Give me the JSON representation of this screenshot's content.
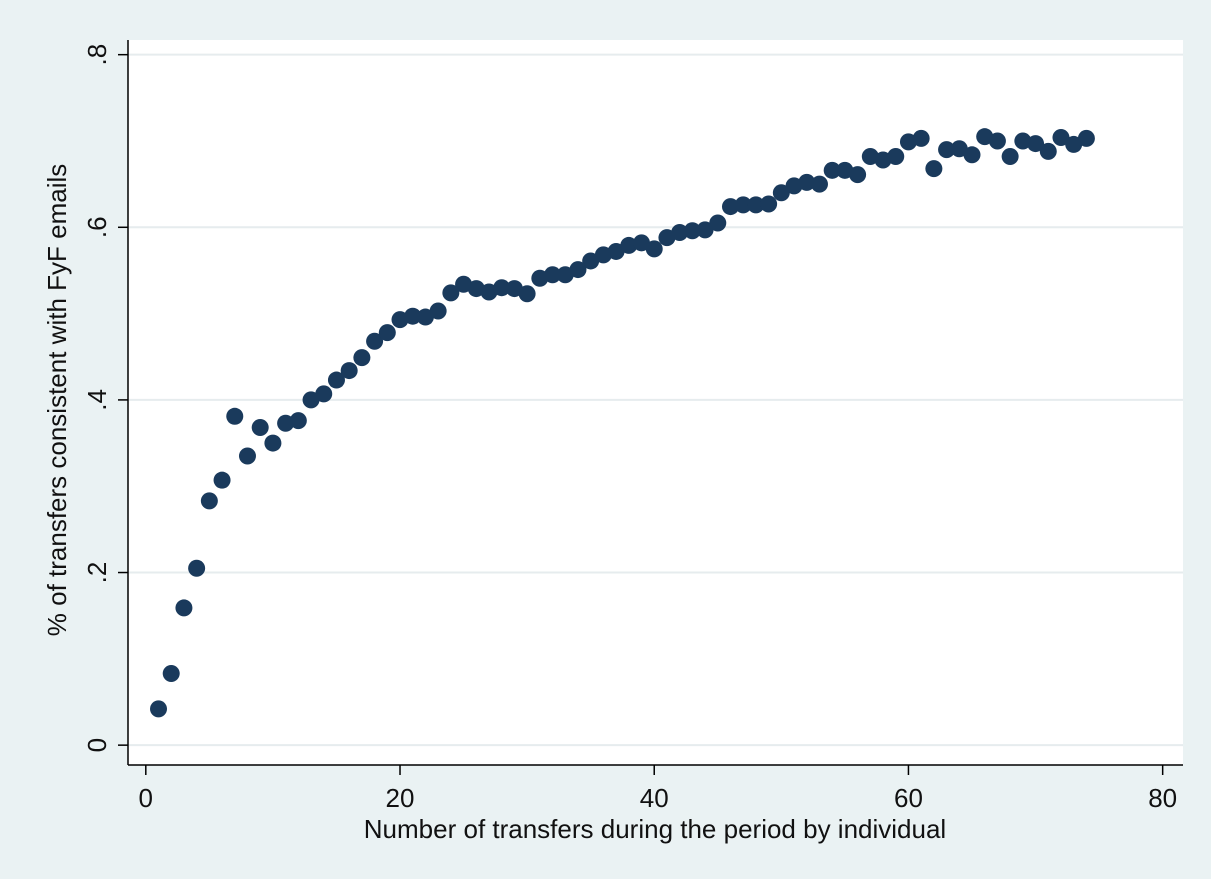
{
  "chart_data": {
    "type": "scatter",
    "x_label": "Number of transfers during the period by individual",
    "y_label": "% of transfers consistent with FyF emails",
    "x": [
      1,
      2,
      3,
      4,
      5,
      6,
      7,
      8,
      9,
      10,
      11,
      12,
      13,
      14,
      15,
      16,
      17,
      18,
      19,
      20,
      21,
      22,
      23,
      24,
      25,
      26,
      27,
      28,
      29,
      30,
      31,
      32,
      33,
      34,
      35,
      36,
      37,
      38,
      39,
      40,
      41,
      42,
      43,
      44,
      45,
      46,
      47,
      48,
      49,
      50,
      51,
      52,
      53,
      54,
      55,
      56,
      57,
      58,
      59,
      60,
      61,
      62,
      63,
      64,
      65,
      66,
      67,
      68,
      69,
      70,
      71,
      72,
      73,
      74
    ],
    "values": [
      0.042,
      0.083,
      0.159,
      0.205,
      0.283,
      0.307,
      0.381,
      0.335,
      0.368,
      0.35,
      0.373,
      0.376,
      0.4,
      0.407,
      0.423,
      0.434,
      0.449,
      0.468,
      0.478,
      0.493,
      0.497,
      0.496,
      0.503,
      0.524,
      0.534,
      0.529,
      0.525,
      0.53,
      0.529,
      0.523,
      0.541,
      0.545,
      0.545,
      0.551,
      0.561,
      0.568,
      0.572,
      0.579,
      0.582,
      0.575,
      0.588,
      0.594,
      0.596,
      0.597,
      0.605,
      0.624,
      0.626,
      0.626,
      0.627,
      0.64,
      0.648,
      0.652,
      0.65,
      0.666,
      0.666,
      0.661,
      0.682,
      0.678,
      0.682,
      0.699,
      0.703,
      0.668,
      0.69,
      0.691,
      0.684,
      0.705,
      0.7,
      0.682,
      0.7,
      0.697,
      0.688,
      0.704,
      0.696,
      0.703
    ],
    "color": "#1a3a5c",
    "xlim": [
      -1.4,
      81.6
    ],
    "xticks": [
      0,
      20,
      40,
      60,
      80
    ],
    "ylim": [
      -0.023,
      0.817
    ],
    "yticks": [
      0,
      {
        "value": 0.2,
        "label": ".2"
      },
      {
        "value": 0.4,
        "label": ".4"
      },
      {
        "value": 0.6,
        "label": ".6"
      },
      {
        "value": 0.8,
        "label": ".8"
      }
    ],
    "grid": true
  }
}
